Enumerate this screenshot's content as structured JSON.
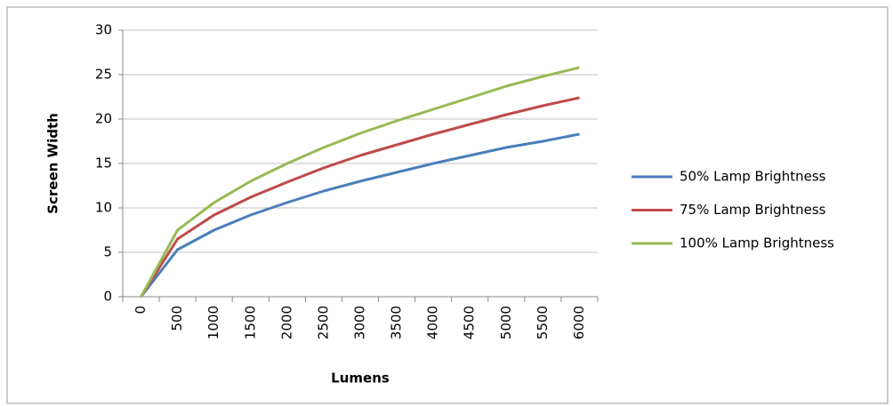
{
  "chart_data": {
    "type": "line",
    "x_label": "Lumens",
    "y_label": "Screen Width",
    "categories": [
      "0",
      "500",
      "1000",
      "1500",
      "2000",
      "2500",
      "3000",
      "3500",
      "4000",
      "4500",
      "5000",
      "5500",
      "6000"
    ],
    "series": [
      {
        "name": "50% Lamp Brightness",
        "color": "#4a7ebb",
        "values": [
          0,
          5.3,
          7.5,
          9.2,
          10.6,
          11.9,
          13.0,
          14.0,
          15.0,
          15.9,
          16.8,
          17.5,
          18.3
        ]
      },
      {
        "name": "75% Lamp Brightness",
        "color": "#be4b48",
        "values": [
          0,
          6.5,
          9.2,
          11.2,
          12.9,
          14.5,
          15.9,
          17.1,
          18.3,
          19.4,
          20.5,
          21.5,
          22.4
        ]
      },
      {
        "name": "100% Lamp Brightness",
        "color": "#98b954",
        "values": [
          0,
          7.5,
          10.6,
          13.0,
          15.0,
          16.8,
          18.4,
          19.8,
          21.1,
          22.4,
          23.7,
          24.8,
          25.8
        ]
      }
    ],
    "ylim": [
      0,
      30
    ],
    "yticks": [
      0,
      5,
      10,
      15,
      20,
      25,
      30
    ],
    "grid": true,
    "legend": "right"
  }
}
